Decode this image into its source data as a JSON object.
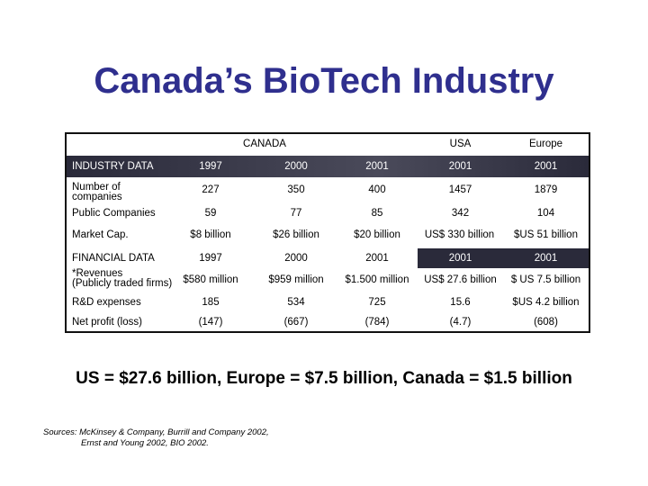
{
  "title": "Canada’s BioTech Industry",
  "table": {
    "region_headers": [
      "CANADA",
      "USA",
      "Europe"
    ],
    "industry_header": [
      "INDUSTRY DATA",
      "1997",
      "2000",
      "2001",
      "2001",
      "2001"
    ],
    "companies_label": [
      "Number of",
      "companies"
    ],
    "companies": [
      "227",
      "350",
      "400",
      "1457",
      "1879"
    ],
    "public_label": "Public Companies",
    "public": [
      "59",
      "77",
      "85",
      "342",
      "104"
    ],
    "market_label": "Market Cap.",
    "market": [
      "$8 billion",
      "$26 billion",
      "$20 billion",
      "US$ 330 billion",
      "$US 51 billion"
    ],
    "financial_header": [
      "FINANCIAL DATA",
      "1997",
      "2000",
      "2001",
      "2001",
      "2001"
    ],
    "revenues_label": [
      "*Revenues",
      "(Publicly traded firms)"
    ],
    "revenues": [
      "$580 million",
      "$959 million",
      "$1.500 million",
      "US$ 27.6 billion",
      "$ US 7.5 billion"
    ],
    "rd_label": "R&D expenses",
    "rd": [
      "185",
      "534",
      "725",
      "15.6",
      "$US 4.2 billion"
    ],
    "profit_label": "Net profit (loss)",
    "profit": [
      "(147)",
      "(667)",
      "(784)",
      "(4.7)",
      "(608)"
    ]
  },
  "summary": "US = $27.6 billion, Europe = $7.5 billion, Canada = $1.5 billion",
  "sources": [
    "Sources: McKinsey & Company, Burrill and Company 2002,",
    "Ernst and Young 2002, BIO 2002."
  ]
}
